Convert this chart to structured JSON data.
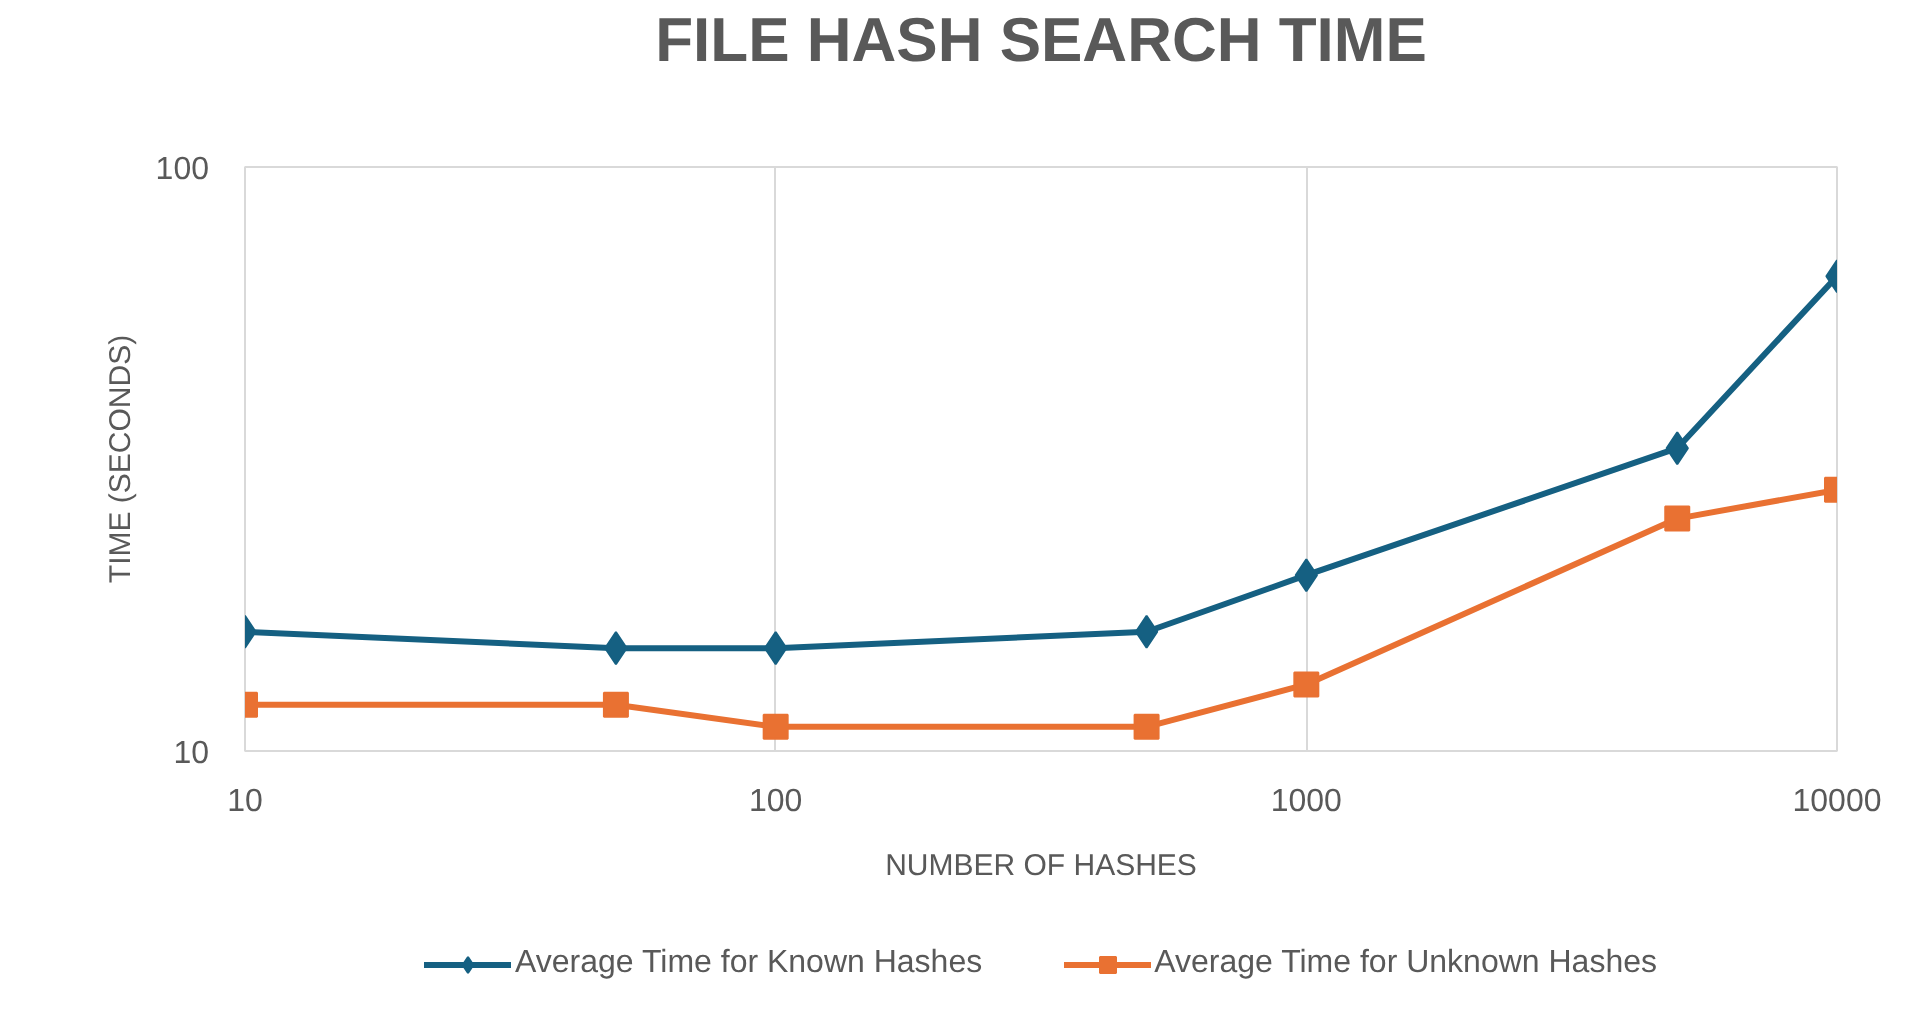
{
  "chart_data": {
    "type": "line",
    "title": "FILE HASH SEARCH TIME",
    "xlabel": "NUMBER OF HASHES",
    "ylabel": "TIME (SECONDS)",
    "x": [
      10,
      50,
      100,
      500,
      1000,
      5000,
      10000
    ],
    "series": [
      {
        "name": "Average Time for Known Hashes",
        "color": "#156082",
        "marker": "diamond",
        "values": [
          16,
          15,
          15,
          16,
          20,
          33,
          65
        ]
      },
      {
        "name": "Average Time for Unknown Hashes",
        "color": "#e97132",
        "marker": "square",
        "values": [
          12,
          12,
          11,
          11,
          13,
          25,
          28
        ]
      }
    ],
    "xlim": [
      10,
      10000
    ],
    "ylim": [
      10,
      100
    ],
    "xticks": [
      10,
      100,
      1000,
      10000
    ],
    "yticks": [
      10,
      100
    ],
    "log": "xy",
    "grid": true,
    "legend": "bottom",
    "line_style": "solid"
  }
}
